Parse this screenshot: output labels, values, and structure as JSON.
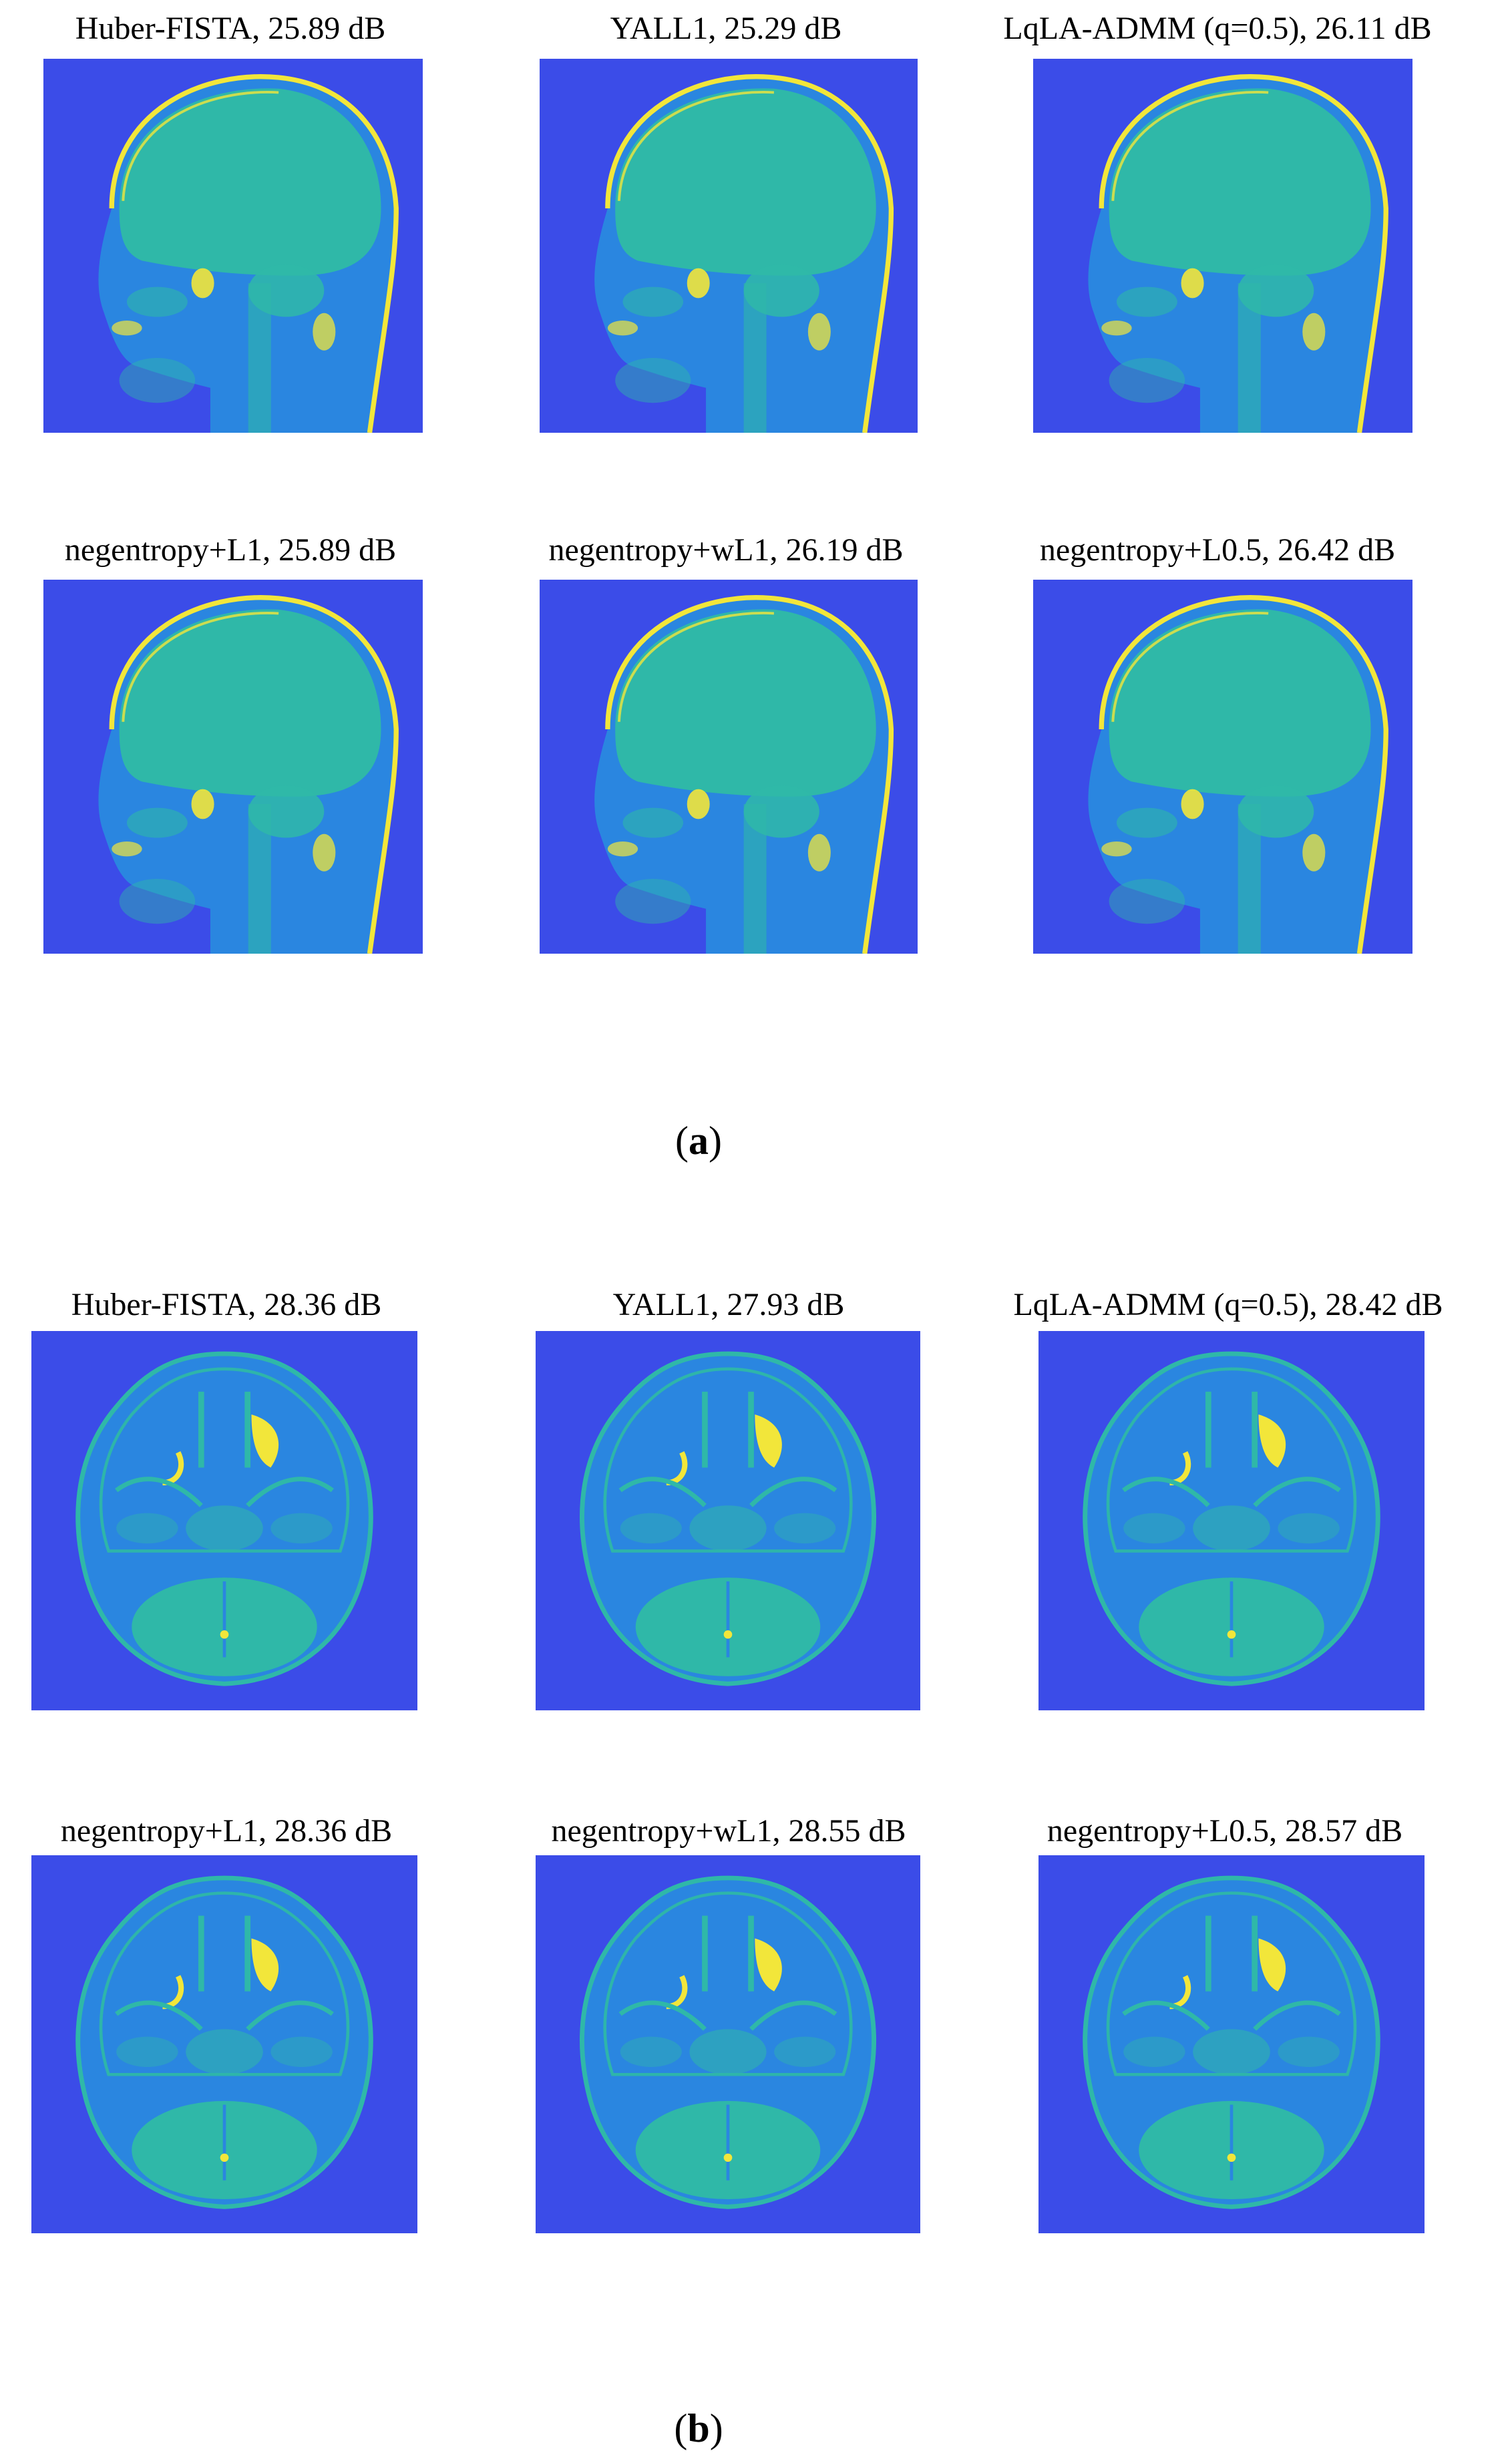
{
  "figure_a": {
    "colors": {
      "background": "#3b4ce8",
      "tissue": "#2fb8a8",
      "bright": "#f2e63a",
      "mid": "#2a86e0"
    },
    "panels": [
      {
        "title": "Huber-FISTA, 25.89 dB"
      },
      {
        "title": "YALL1, 25.29 dB"
      },
      {
        "title": "LqLA-ADMM (q=0.5), 26.11 dB"
      },
      {
        "title": "negentropy+L1, 25.89 dB"
      },
      {
        "title": "negentropy+wL1, 26.19 dB"
      },
      {
        "title": "negentropy+L0.5, 26.42 dB"
      }
    ],
    "caption_open": "(",
    "caption_letter": "a",
    "caption_close": ")"
  },
  "figure_b": {
    "panels": [
      {
        "title": "Huber-FISTA, 28.36 dB"
      },
      {
        "title": "YALL1, 27.93 dB"
      },
      {
        "title": "LqLA-ADMM (q=0.5), 28.42 dB"
      },
      {
        "title": "negentropy+L1, 28.36 dB"
      },
      {
        "title": "negentropy+wL1, 28.55 dB"
      },
      {
        "title": "negentropy+L0.5, 28.57 dB"
      }
    ],
    "caption_open": "(",
    "caption_letter": "b",
    "caption_close": ")"
  }
}
